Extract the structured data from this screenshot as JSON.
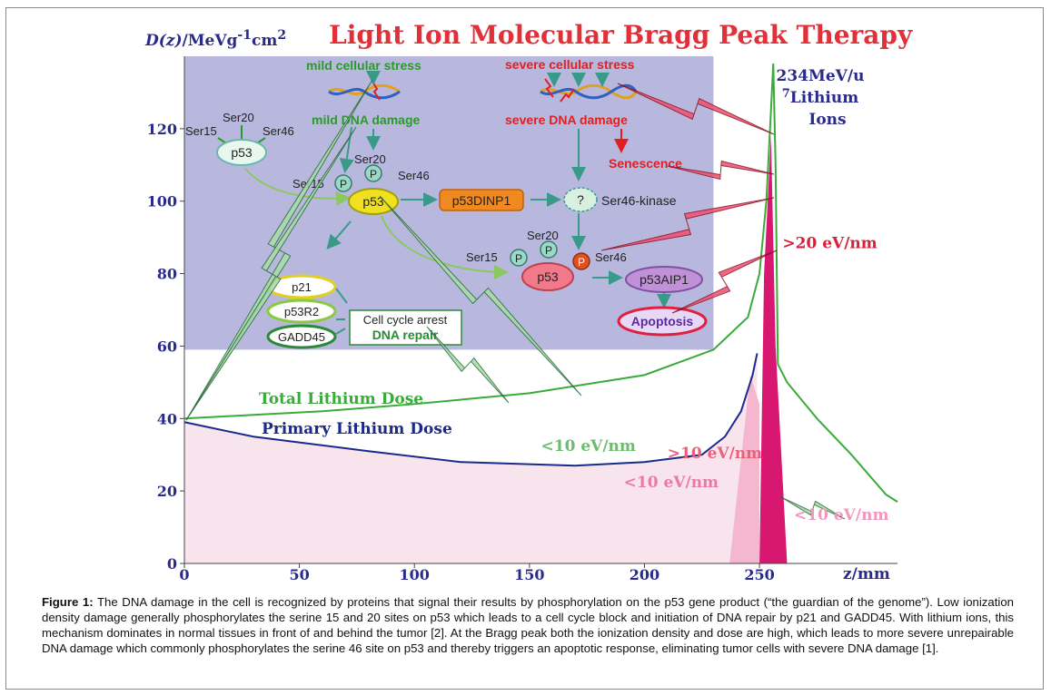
{
  "chart_data": {
    "type": "line",
    "title": "Light Ion Molecular Bragg Peak Therapy",
    "ylabel_parts": [
      "D(z)",
      "/MeVg",
      "-1",
      "cm",
      "2"
    ],
    "xlabel": "z/mm",
    "xlim": [
      0,
      310
    ],
    "ylim": [
      0,
      140
    ],
    "x_ticks": [
      0,
      50,
      100,
      150,
      200,
      250
    ],
    "y_ticks": [
      0,
      20,
      40,
      60,
      80,
      100,
      120
    ],
    "beam_label": [
      "234MeV/u",
      "7",
      "Lithium",
      "Ions"
    ],
    "series": [
      {
        "name": "Total Lithium Dose",
        "color": "#3aaa3a",
        "points": [
          [
            0,
            40
          ],
          [
            30,
            41
          ],
          [
            60,
            42
          ],
          [
            100,
            44
          ],
          [
            150,
            47
          ],
          [
            200,
            52
          ],
          [
            230,
            59
          ],
          [
            245,
            68
          ],
          [
            250,
            80
          ],
          [
            253,
            100
          ],
          [
            255,
            125
          ],
          [
            256,
            138
          ],
          [
            257,
            110
          ],
          [
            258,
            55
          ],
          [
            262,
            50
          ],
          [
            275,
            40
          ],
          [
            290,
            30
          ],
          [
            305,
            19
          ],
          [
            310,
            17
          ]
        ]
      },
      {
        "name": "Primary Lithium Dose",
        "color": "#1a2a8a",
        "points": [
          [
            0,
            39
          ],
          [
            30,
            35
          ],
          [
            80,
            31
          ],
          [
            120,
            28
          ],
          [
            170,
            27
          ],
          [
            200,
            28
          ],
          [
            225,
            30
          ],
          [
            235,
            35
          ],
          [
            242,
            42
          ],
          [
            247,
            52
          ],
          [
            249,
            58
          ]
        ]
      }
    ],
    "annotations": [
      {
        "text": "<10 eV/nm",
        "color": "#6dbb6d",
        "x": 155,
        "y": 31
      },
      {
        "text": ">10 eV/nm",
        "color": "#e8607a",
        "x": 210,
        "y": 29
      },
      {
        "text": "<10 eV/nm",
        "color": "#e87aa8",
        "x": 191,
        "y": 21
      },
      {
        "text": ">20 eV/nm",
        "color": "#d8203a",
        "x": 260,
        "y": 87
      },
      {
        "text": "<10 eV/nm",
        "color": "#ee99bb",
        "x": 265,
        "y": 12
      }
    ]
  },
  "diagram": {
    "mild_stress": "mild cellular stress",
    "severe_stress": "severe cellular stress",
    "mild_damage": "mild DNA damage",
    "severe_damage": "severe DNA damage",
    "senescence": "Senescence",
    "ser15": "Ser15",
    "ser20": "Ser20",
    "ser46": "Ser46",
    "p53": "p53",
    "p": "P",
    "p53dinp1": "p53DINP1",
    "kinase_q": "?",
    "kinase": "Ser46-kinase",
    "p53aip1": "p53AIP1",
    "apoptosis": "Apoptosis",
    "p21": "p21",
    "p53r2": "p53R2",
    "gadd45": "GADD45",
    "arrest": "Cell cycle arrest",
    "repair": "DNA repair"
  },
  "caption": {
    "label": "Figure 1:",
    "text": " The DNA damage in the cell is recognized by proteins that signal their results by phosphorylation on the p53 gene product (“the guardian of the genome”). Low ionization density damage generally phosphorylates the serine 15 and 20 sites on p53 which leads to a cell cycle block and initiation of DNA repair by p21 and GADD45. With lithium ions, this mechanism dominates in normal tissues in front of and behind the tumor [2]. At the Bragg peak both the ionization density and dose are high, which leads to more severe unrepairable DNA damage which commonly phosphorylates the serine 46 site on p53 and thereby triggers an apoptotic response, eliminating tumor cells with severe DNA damage [1]."
  }
}
